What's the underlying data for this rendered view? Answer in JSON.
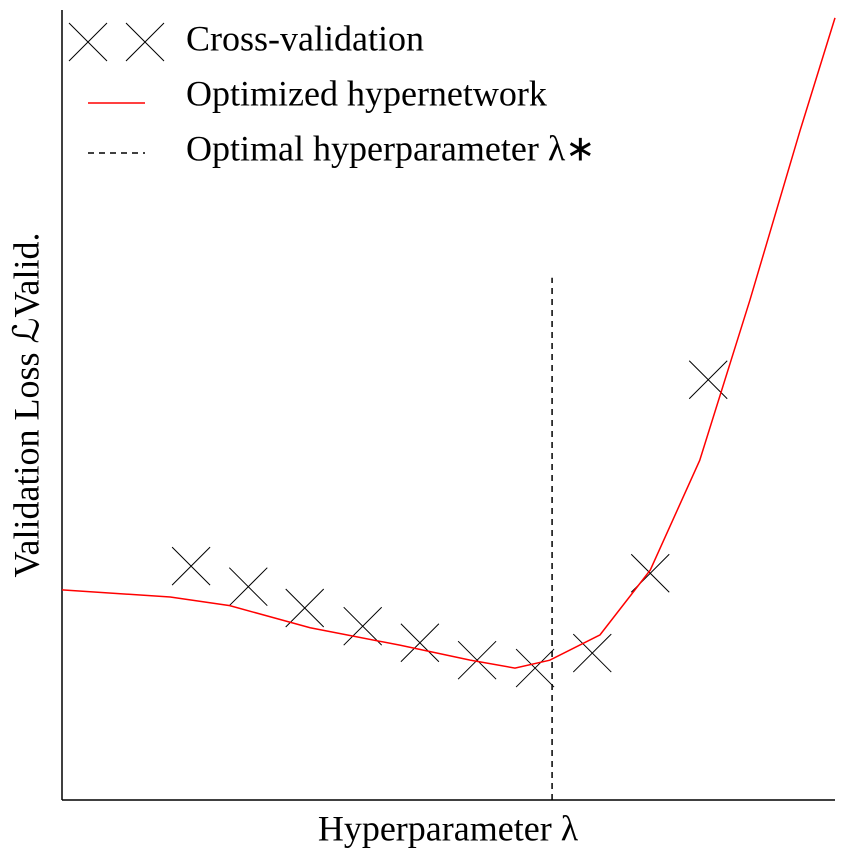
{
  "chart_data": {
    "type": "line",
    "xlabel": "Hyperparameter λ",
    "ylabel": "Validation Loss ℒValid.",
    "xlim": [
      0,
      10
    ],
    "ylim": [
      0,
      10
    ],
    "legend": "upper left",
    "series": [
      {
        "name": "Cross-validation",
        "color": "#000000",
        "marker": "x",
        "x": [
          1.67,
          2.41,
          3.14,
          3.89,
          4.63,
          5.37,
          6.12,
          6.86,
          7.61,
          8.36
        ],
        "values": [
          2.96,
          2.7,
          2.43,
          2.2,
          1.99,
          1.77,
          1.67,
          1.86,
          2.87,
          5.32
        ]
      },
      {
        "name": "Optimized hypernetwork",
        "color": "#ff0000",
        "x": [
          0,
          1.4,
          2.17,
          3.21,
          4.37,
          5.28,
          5.86,
          6.31,
          6.96,
          7.61,
          8.25,
          8.9,
          9.55,
          10
        ],
        "values": [
          2.66,
          2.57,
          2.46,
          2.18,
          1.96,
          1.77,
          1.67,
          1.77,
          2.09,
          2.91,
          4.3,
          6.33,
          8.48,
          9.9
        ]
      },
      {
        "name": "Optimal hyperparameter λ∗",
        "color": "#000000",
        "dash": true,
        "x": [
          6.34,
          6.34
        ],
        "values": [
          0,
          6.61
        ]
      }
    ]
  }
}
